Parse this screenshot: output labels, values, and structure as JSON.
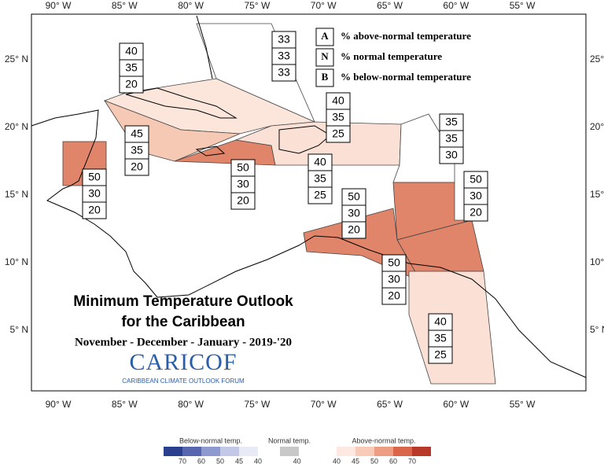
{
  "longitude_labels": [
    "90° W",
    "85° W",
    "80° W",
    "75° W",
    "70° W",
    "65° W",
    "60° W",
    "55° W"
  ],
  "latitude_labels": [
    "25° N",
    "20° N",
    "15° N",
    "10° N",
    "5° N"
  ],
  "title": {
    "line1": "Minimum Temperature Outlook",
    "line2": "for the Caribbean",
    "period": "November - December - January - 2019-'20"
  },
  "logo": {
    "name": "CARICOF",
    "subtitle": "CARIBBEAN CLIMATE OUTLOOK FORUM"
  },
  "key": [
    {
      "letter": "A",
      "text": "% above-normal temperature"
    },
    {
      "letter": "N",
      "text": "% normal temperature"
    },
    {
      "letter": "B",
      "text": "% below-normal temperature"
    }
  ],
  "forecast_boxes": [
    {
      "A": 40,
      "N": 35,
      "B": 20
    },
    {
      "A": 33,
      "N": 33,
      "B": 33
    },
    {
      "A": 40,
      "N": 35,
      "B": 25
    },
    {
      "A": 35,
      "N": 35,
      "B": 30
    },
    {
      "A": 45,
      "N": 35,
      "B": 20
    },
    {
      "A": 50,
      "N": 30,
      "B": 20
    },
    {
      "A": 50,
      "N": 30,
      "B": 20
    },
    {
      "A": 40,
      "N": 35,
      "B": 25
    },
    {
      "A": 50,
      "N": 30,
      "B": 20
    },
    {
      "A": 50,
      "N": 30,
      "B": 20
    },
    {
      "A": 50,
      "N": 30,
      "B": 20
    },
    {
      "A": 40,
      "N": 35,
      "B": 25
    }
  ],
  "colorbar": {
    "below": {
      "title": "Below-normal temp.",
      "ticks": [
        70,
        60,
        50,
        45,
        40
      ]
    },
    "normal": {
      "title": "Normal temp.",
      "ticks": [
        40
      ]
    },
    "above": {
      "title": "Above-normal temp.",
      "ticks": [
        40,
        45,
        50,
        60,
        70
      ]
    }
  }
}
